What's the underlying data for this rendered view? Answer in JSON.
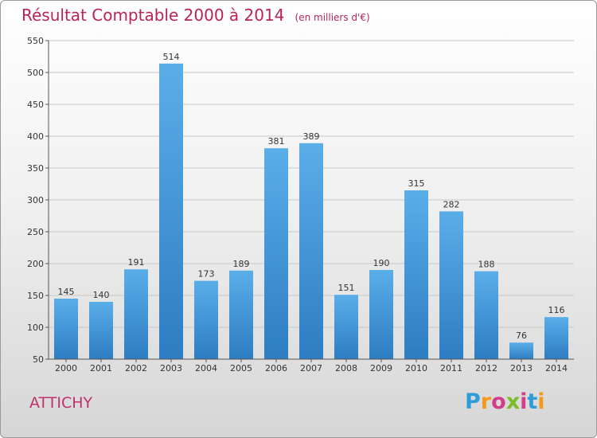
{
  "title": "Résultat Comptable 2000 à 2014",
  "subtitle": "(en milliers d'€)",
  "town": "ATTICHY",
  "logo": {
    "letters": [
      "P",
      "r",
      "o",
      "x",
      "i",
      "t",
      "i"
    ],
    "colors": [
      "#2f9bd8",
      "#f39a1a",
      "#d43d8b",
      "#7dbb2a",
      "#d43d8b",
      "#2f9bd8",
      "#f39a1a"
    ]
  },
  "colors": {
    "bar": "#3f94d6",
    "title": "#b8245a"
  },
  "chart_data": {
    "type": "bar",
    "title": "Résultat Comptable 2000 à 2014",
    "xlabel": "",
    "ylabel": "",
    "ylim": [
      50,
      550
    ],
    "yticks": [
      50,
      100,
      150,
      200,
      250,
      300,
      350,
      400,
      450,
      500,
      550
    ],
    "categories": [
      "2000",
      "2001",
      "2002",
      "2003",
      "2004",
      "2005",
      "2006",
      "2007",
      "2008",
      "2009",
      "2010",
      "2011",
      "2012",
      "2013",
      "2014"
    ],
    "values": [
      145,
      140,
      191,
      514,
      173,
      189,
      381,
      389,
      151,
      190,
      315,
      282,
      188,
      76,
      116
    ],
    "grid": true
  }
}
